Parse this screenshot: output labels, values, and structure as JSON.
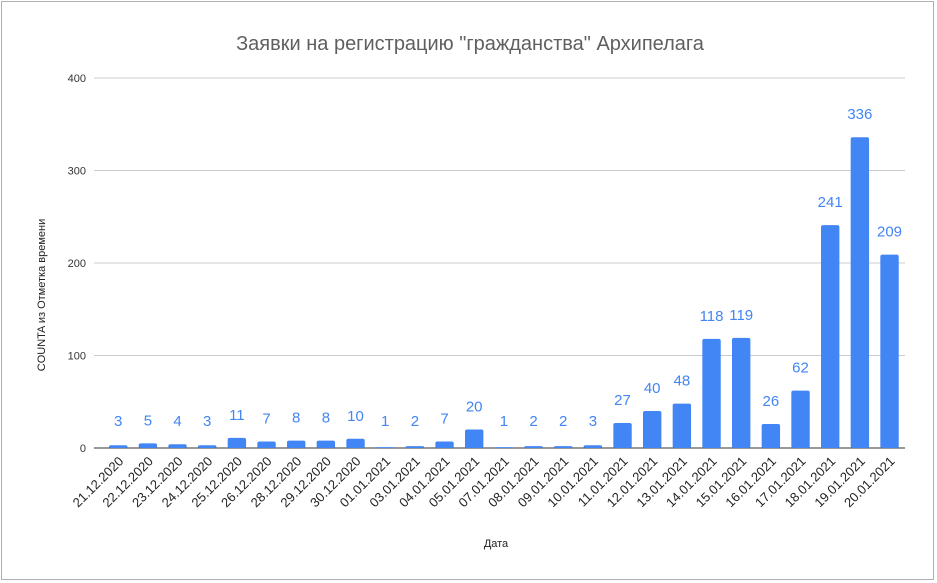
{
  "chart_data": {
    "type": "bar",
    "title": "Заявки на регистрацию \"гражданства\" Архипелага",
    "xlabel": "Дата",
    "ylabel": "COUNTA из Отметка времени",
    "ylim": [
      0,
      400
    ],
    "yticks": [
      0,
      100,
      200,
      300,
      400
    ],
    "grid": true,
    "legend": "none",
    "bar_color": "#4285f4",
    "categories": [
      "21.12.2020",
      "22.12.2020",
      "23.12.2020",
      "24.12.2020",
      "25.12.2020",
      "26.12.2020",
      "28.12.2020",
      "29.12.2020",
      "30.12.2020",
      "01.01.2021",
      "03.01.2021",
      "04.01.2021",
      "05.01.2021",
      "07.01.2021",
      "08.01.2021",
      "09.01.2021",
      "10.01.2021",
      "11.01.2021",
      "12.01.2021",
      "13.01.2021",
      "14.01.2021",
      "15.01.2021",
      "16.01.2021",
      "17.01.2021",
      "18.01.2021",
      "19.01.2021",
      "20.01.2021"
    ],
    "values": [
      3,
      5,
      4,
      3,
      11,
      7,
      8,
      8,
      10,
      1,
      2,
      7,
      20,
      1,
      2,
      2,
      3,
      27,
      40,
      48,
      118,
      119,
      26,
      62,
      241,
      336,
      209
    ]
  }
}
